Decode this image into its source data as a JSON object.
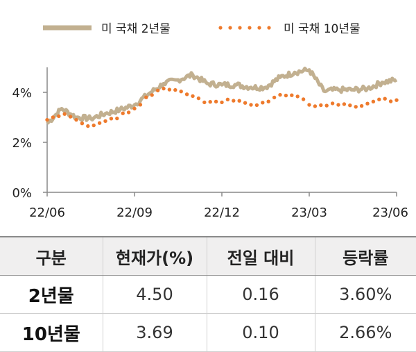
{
  "chart_data": {
    "type": "line",
    "x_tick_labels": [
      "22/06",
      "22/09",
      "22/12",
      "23/03",
      "23/06"
    ],
    "y_tick_labels": [
      "0%",
      "2%",
      "4%"
    ],
    "ylim": [
      0,
      5
    ],
    "legend_position": "top",
    "grid": false,
    "series": [
      {
        "name": "미 국채 2년물",
        "color": "#c2b090",
        "style": "solid",
        "points": [
          [
            "22/06",
            2.75
          ],
          [
            "22/06.5",
            3.35
          ],
          [
            "22/07",
            3.0
          ],
          [
            "22/07.5",
            2.95
          ],
          [
            "22/08",
            3.15
          ],
          [
            "22/08.5",
            3.3
          ],
          [
            "22/09",
            3.5
          ],
          [
            "22/09.5",
            3.95
          ],
          [
            "22/10",
            4.35
          ],
          [
            "22/10.5",
            4.5
          ],
          [
            "22/11",
            4.7
          ],
          [
            "22/11.5",
            4.35
          ],
          [
            "22/12",
            4.3
          ],
          [
            "22/12.5",
            4.3
          ],
          [
            "23/01",
            4.2
          ],
          [
            "23/01.5",
            4.2
          ],
          [
            "23/02",
            4.6
          ],
          [
            "23/02.5",
            4.8
          ],
          [
            "23/03",
            4.9
          ],
          [
            "23/03.5",
            4.05
          ],
          [
            "23/04",
            4.1
          ],
          [
            "23/04.5",
            4.1
          ],
          [
            "23/05",
            4.15
          ],
          [
            "23/05.5",
            4.4
          ],
          [
            "23/06",
            4.5
          ]
        ]
      },
      {
        "name": "미 국채 10년물",
        "color": "#ee7a2c",
        "style": "dotted",
        "points": [
          [
            "22/06",
            2.9
          ],
          [
            "22/06.5",
            3.15
          ],
          [
            "22/07",
            2.9
          ],
          [
            "22/07.5",
            2.65
          ],
          [
            "22/08",
            2.85
          ],
          [
            "22/08.5",
            3.05
          ],
          [
            "22/09",
            3.35
          ],
          [
            "22/09.5",
            3.85
          ],
          [
            "22/10",
            4.15
          ],
          [
            "22/10.5",
            4.05
          ],
          [
            "22/11",
            3.85
          ],
          [
            "22/11.5",
            3.55
          ],
          [
            "22/12",
            3.6
          ],
          [
            "22/12.5",
            3.75
          ],
          [
            "23/01",
            3.5
          ],
          [
            "23/01.5",
            3.6
          ],
          [
            "23/02",
            3.9
          ],
          [
            "23/02.5",
            3.95
          ],
          [
            "23/03",
            3.5
          ],
          [
            "23/03.5",
            3.5
          ],
          [
            "23/04",
            3.5
          ],
          [
            "23/04.5",
            3.45
          ],
          [
            "23/05",
            3.55
          ],
          [
            "23/05.5",
            3.7
          ],
          [
            "23/06",
            3.69
          ]
        ]
      }
    ]
  },
  "table": {
    "headers": [
      "구분",
      "현재가(%)",
      "전일 대비",
      "등락률"
    ],
    "rows": [
      {
        "name": "2년물",
        "price": "4.50",
        "change": "0.16",
        "rate": "3.60%"
      },
      {
        "name": "10년물",
        "price": "3.69",
        "change": "0.10",
        "rate": "2.66%"
      }
    ]
  }
}
